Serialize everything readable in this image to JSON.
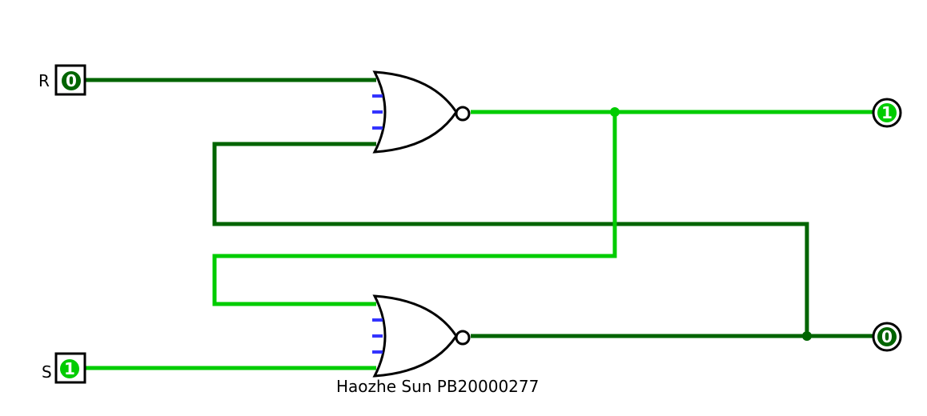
{
  "colors": {
    "wire_high": "#00cc00",
    "wire_low": "#006400",
    "gate_stroke": "#000000",
    "negation_pin": "#3333ff",
    "background": "#ffffff"
  },
  "inputs": {
    "r": {
      "label": "R",
      "value": "0",
      "state": "low"
    },
    "s": {
      "label": "S",
      "value": "1",
      "state": "high"
    }
  },
  "outputs": {
    "q_top": {
      "value": "1",
      "state": "high"
    },
    "q_bottom": {
      "value": "0",
      "state": "low"
    }
  },
  "gates": [
    {
      "type": "NOR",
      "name": "nor-top"
    },
    {
      "type": "NOR",
      "name": "nor-bottom"
    }
  ],
  "caption": "Haozhe Sun PB20000277"
}
